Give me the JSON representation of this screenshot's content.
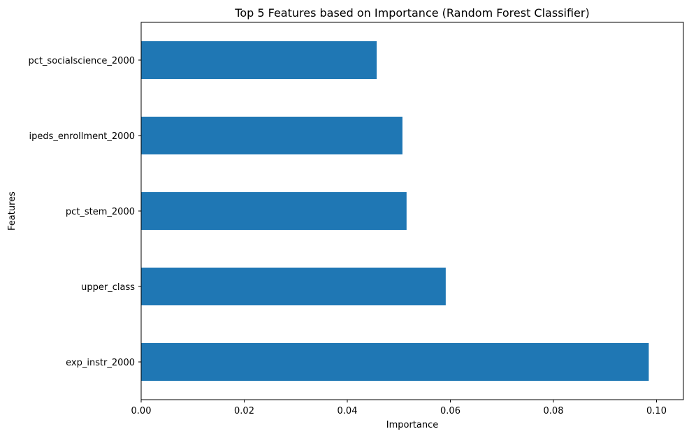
{
  "chart_data": {
    "type": "bar",
    "orientation": "horizontal",
    "title": "Top 5 Features based on Importance (Random Forest Classifier)",
    "xlabel": "Importance",
    "ylabel": "Features",
    "categories": [
      "pct_socialscience_2000",
      "ipeds_enrollment_2000",
      "pct_stem_2000",
      "upper_class",
      "exp_instr_2000"
    ],
    "values": [
      0.0457,
      0.0507,
      0.0515,
      0.0591,
      0.0985
    ],
    "xlim": [
      0,
      0.1
    ],
    "xticks": [
      0.0,
      0.02,
      0.04,
      0.06,
      0.08,
      0.1
    ],
    "xtick_labels": [
      "0.00",
      "0.02",
      "0.04",
      "0.06",
      "0.08",
      "0.10"
    ],
    "bar_color": "#1f77b4",
    "grid": false,
    "legend": "none"
  }
}
